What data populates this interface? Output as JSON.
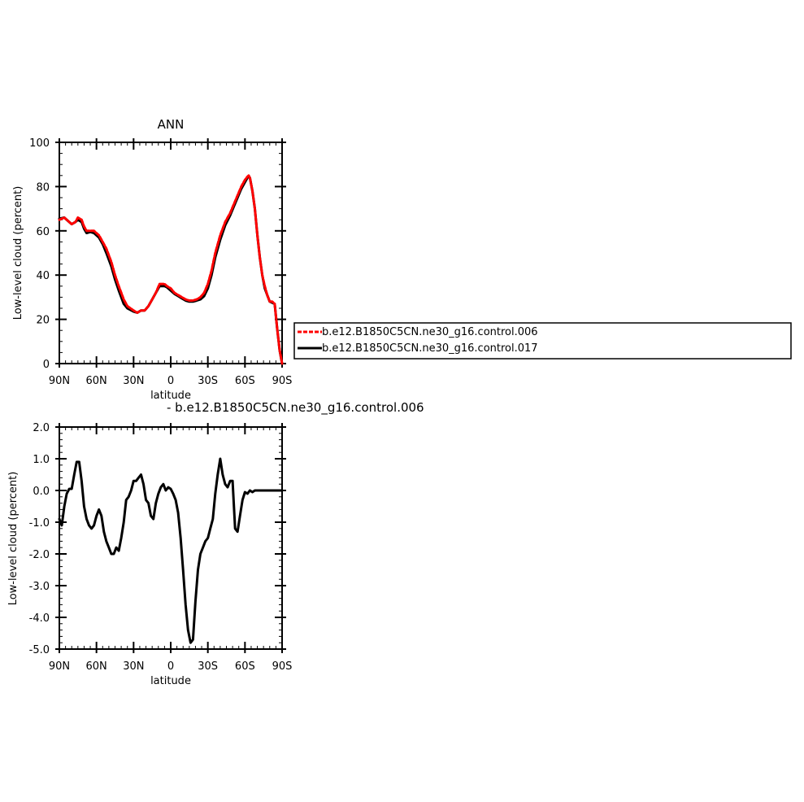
{
  "chart_data": [
    {
      "type": "line",
      "title": "ANN",
      "xlabel": "latitude",
      "ylabel": "Low-level cloud (percent)",
      "xlim": [
        -90,
        90
      ],
      "ylim": [
        0,
        100
      ],
      "x_ticks": [
        {
          "value": -90,
          "label": "90N"
        },
        {
          "value": -60,
          "label": "60N"
        },
        {
          "value": -30,
          "label": "30N"
        },
        {
          "value": 0,
          "label": "0"
        },
        {
          "value": 30,
          "label": "30S"
        },
        {
          "value": 60,
          "label": "60S"
        },
        {
          "value": 90,
          "label": "90S"
        }
      ],
      "y_ticks": [
        {
          "value": 0,
          "label": "0"
        },
        {
          "value": 20,
          "label": "20"
        },
        {
          "value": 40,
          "label": "40"
        },
        {
          "value": 60,
          "label": "60"
        },
        {
          "value": 80,
          "label": "80"
        },
        {
          "value": 100,
          "label": "100"
        }
      ],
      "legend_position": "right",
      "series": [
        {
          "name": "b.e12.B1850C5CN.ne30_g16.control.006",
          "color": "#ff0000",
          "dash": "dashed",
          "x": [
            -90,
            -86,
            -84,
            -80,
            -77,
            -75,
            -72,
            -70,
            -68,
            -65,
            -62,
            -58,
            -55,
            -52,
            -48,
            -45,
            -42,
            -38,
            -35,
            -30,
            -27,
            -24,
            -21,
            -18,
            -15,
            -12,
            -9,
            -7,
            -5,
            -3,
            0,
            3,
            6,
            9,
            12,
            15,
            18,
            21,
            24,
            27,
            30,
            33,
            36,
            40,
            44,
            48,
            51,
            54,
            57,
            60,
            62,
            63,
            64,
            66,
            68,
            70,
            72,
            74,
            76,
            78,
            80,
            82,
            84,
            86,
            88,
            90
          ],
          "y": [
            65,
            66,
            65,
            63,
            64,
            66,
            65,
            62,
            60,
            60,
            60,
            58,
            55,
            52,
            46,
            40,
            35,
            29,
            26,
            24,
            23,
            24,
            24,
            26,
            29,
            32,
            36,
            36,
            36,
            35,
            34,
            32,
            31,
            30,
            29,
            28.5,
            28.5,
            29,
            30,
            32,
            36,
            42,
            50,
            58,
            64,
            68,
            72,
            76,
            80,
            83,
            84.5,
            85,
            84,
            78,
            70,
            58,
            48,
            40,
            35,
            31,
            28,
            28,
            27,
            16,
            6,
            0
          ]
        },
        {
          "name": "b.e12.B1850C5CN.ne30_g16.control.017",
          "color": "#000000",
          "dash": "solid",
          "x": [
            -90,
            -86,
            -84,
            -80,
            -77,
            -75,
            -72,
            -70,
            -68,
            -65,
            -62,
            -58,
            -55,
            -52,
            -48,
            -45,
            -42,
            -38,
            -35,
            -30,
            -27,
            -24,
            -21,
            -18,
            -15,
            -12,
            -9,
            -7,
            -5,
            -3,
            0,
            3,
            6,
            9,
            12,
            15,
            18,
            21,
            24,
            27,
            30,
            33,
            36,
            40,
            44,
            48,
            51,
            54,
            57,
            60,
            62,
            63,
            64,
            66,
            68,
            70,
            72,
            74,
            76,
            78,
            80,
            82,
            84,
            86,
            88,
            90
          ],
          "y": [
            65.5,
            66,
            65,
            63,
            64,
            65,
            64,
            61,
            59,
            59.5,
            59,
            57,
            54,
            50,
            44,
            38,
            33,
            27,
            25,
            23.5,
            23,
            24,
            24,
            26,
            29,
            32,
            35,
            35,
            35,
            34.5,
            33,
            31.5,
            30.5,
            29.5,
            28.5,
            28,
            28,
            28.5,
            29,
            30.5,
            34,
            40,
            48,
            56,
            62.5,
            67,
            71,
            75,
            79,
            82,
            84,
            84.5,
            84,
            78,
            70,
            58,
            48,
            40,
            34,
            31,
            28,
            27.5,
            27,
            16,
            6,
            0
          ]
        }
      ]
    },
    {
      "type": "line",
      "title": "",
      "xlabel": "latitude",
      "ylabel": "Low-level cloud (percent)",
      "xlim": [
        -90,
        90
      ],
      "ylim": [
        -5.0,
        2.0
      ],
      "x_ticks": [
        {
          "value": -90,
          "label": "90N"
        },
        {
          "value": -60,
          "label": "60N"
        },
        {
          "value": -30,
          "label": "30N"
        },
        {
          "value": 0,
          "label": "0"
        },
        {
          "value": 30,
          "label": "30S"
        },
        {
          "value": 60,
          "label": "60S"
        },
        {
          "value": 90,
          "label": "90S"
        }
      ],
      "y_ticks": [
        {
          "value": 2.0,
          "label": "2.0"
        },
        {
          "value": 1.0,
          "label": "1.0"
        },
        {
          "value": 0.0,
          "label": "0.0"
        },
        {
          "value": -1.0,
          "label": "-1.0"
        },
        {
          "value": -2.0,
          "label": "-2.0"
        },
        {
          "value": -3.0,
          "label": "-3.0"
        },
        {
          "value": -4.0,
          "label": "-4.0"
        },
        {
          "value": -5.0,
          "label": "-5.0"
        }
      ],
      "legend_position": "top-right",
      "series": [
        {
          "name": "b.e12.B1850C5CN.ne30_g16.control.006",
          "color": "#000000",
          "dash": "solid",
          "x": [
            -90,
            -88,
            -86,
            -84,
            -82,
            -80,
            -78,
            -76,
            -74,
            -72,
            -70,
            -68,
            -66,
            -64,
            -62,
            -60,
            -58,
            -56,
            -54,
            -52,
            -50,
            -48,
            -46,
            -44,
            -42,
            -40,
            -38,
            -36,
            -34,
            -32,
            -30,
            -28,
            -26,
            -24,
            -22,
            -20,
            -18,
            -16,
            -14,
            -12,
            -10,
            -8,
            -6,
            -4,
            -2,
            0,
            2,
            4,
            6,
            8,
            10,
            12,
            14,
            16,
            18,
            20,
            22,
            24,
            26,
            28,
            30,
            32,
            34,
            35,
            36,
            38,
            40,
            42,
            44,
            46,
            48,
            50,
            52,
            54,
            56,
            58,
            60,
            62,
            64,
            66,
            68,
            70,
            72,
            74,
            76,
            78,
            80,
            82,
            84,
            86,
            88,
            90
          ],
          "y": [
            -0.9,
            -1.1,
            -0.5,
            -0.1,
            0.05,
            0.05,
            0.5,
            0.9,
            0.9,
            0.3,
            -0.5,
            -0.9,
            -1.1,
            -1.2,
            -1.1,
            -0.8,
            -0.6,
            -0.8,
            -1.3,
            -1.6,
            -1.8,
            -2.0,
            -2.0,
            -1.8,
            -1.9,
            -1.5,
            -1.0,
            -0.3,
            -0.2,
            0.0,
            0.3,
            0.3,
            0.4,
            0.5,
            0.2,
            -0.3,
            -0.4,
            -0.8,
            -0.9,
            -0.4,
            -0.1,
            0.1,
            0.2,
            0.0,
            0.1,
            0.05,
            -0.1,
            -0.3,
            -0.7,
            -1.5,
            -2.5,
            -3.6,
            -4.4,
            -4.8,
            -4.7,
            -3.5,
            -2.5,
            -2.0,
            -1.8,
            -1.6,
            -1.5,
            -1.2,
            -0.9,
            -0.5,
            -0.1,
            0.5,
            1.0,
            0.5,
            0.2,
            0.1,
            0.3,
            0.3,
            -1.2,
            -1.3,
            -0.8,
            -0.3,
            -0.05,
            -0.1,
            0.0,
            -0.05,
            0.0,
            0.0,
            0.0,
            0.0,
            0.0,
            0.0,
            0.0,
            0.0,
            0.0,
            0.0,
            0.0,
            0.0
          ]
        }
      ]
    }
  ],
  "legends": {
    "top": [
      "b.e12.B1850C5CN.ne30_g16.control.006",
      "b.e12.B1850C5CN.ne30_g16.control.017"
    ],
    "bottom": "- b.e12.B1850C5CN.ne30_g16.control.006"
  }
}
